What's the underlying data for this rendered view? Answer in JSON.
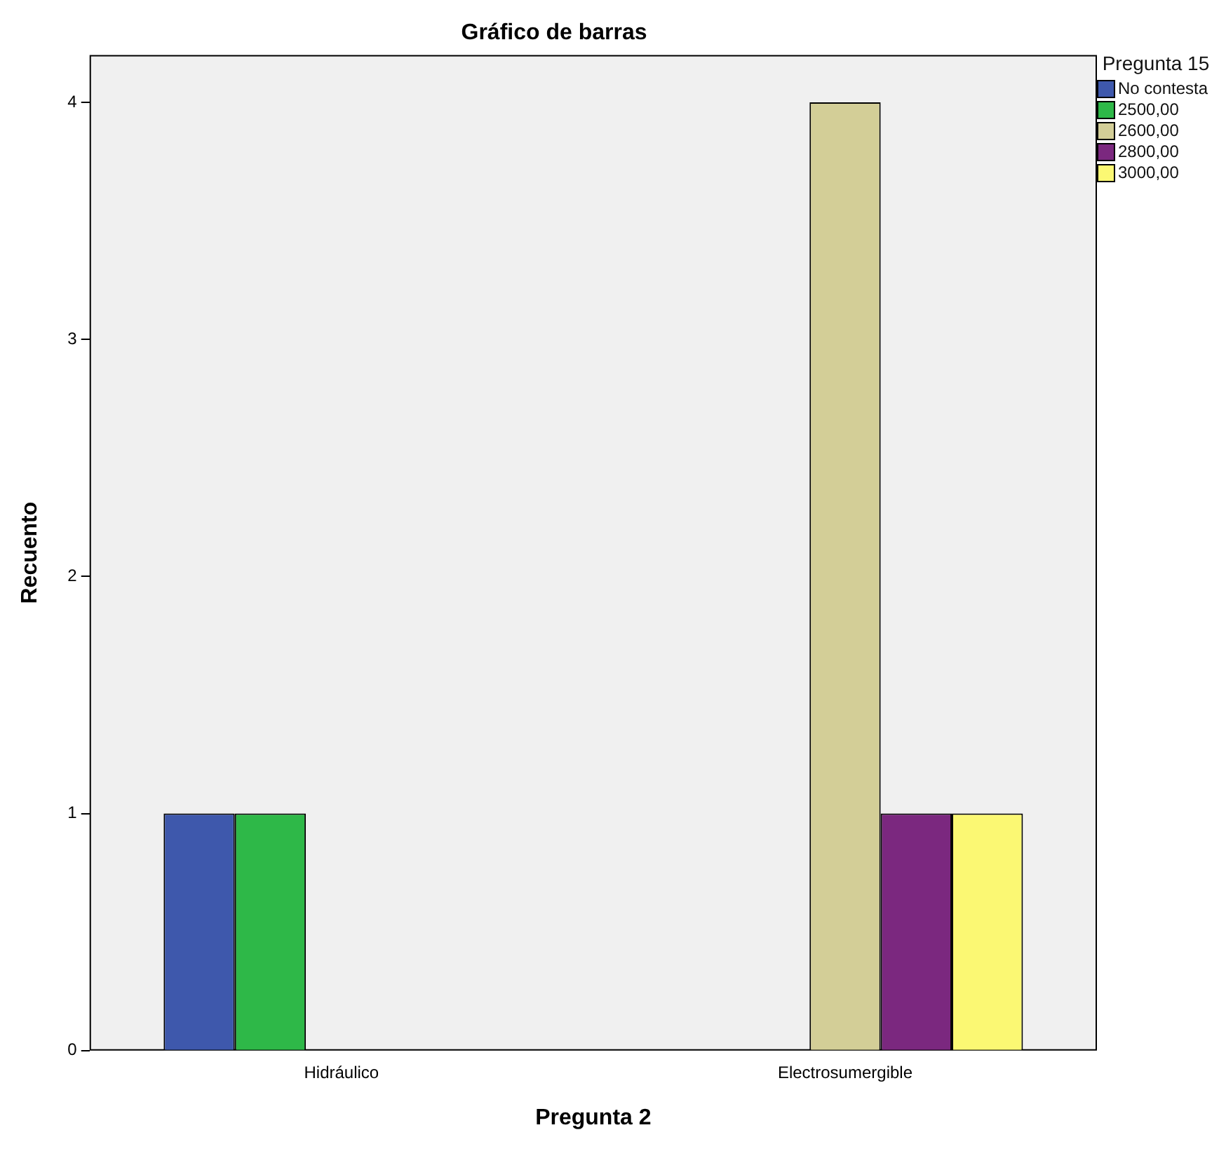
{
  "chart_data": {
    "type": "bar",
    "title": "Gráfico de barras",
    "xlabel": "Pregunta 2",
    "ylabel": "Recuento",
    "legend_title": "Pregunta 15",
    "legend": "right",
    "grid": false,
    "categories": [
      "Hidráulico",
      "Electrosumergible"
    ],
    "ylim": [
      0,
      4.2
    ],
    "yticks": [
      0,
      1,
      2,
      3,
      4
    ],
    "series": [
      {
        "name": "No contesta",
        "color": "#3e58ac",
        "values": [
          1,
          null
        ]
      },
      {
        "name": "2500,00",
        "color": "#2eb848",
        "values": [
          1,
          null
        ]
      },
      {
        "name": "2600,00",
        "color": "#d3ce97",
        "values": [
          null,
          4
        ]
      },
      {
        "name": "2800,00",
        "color": "#7b287f",
        "values": [
          null,
          1
        ]
      },
      {
        "name": "3000,00",
        "color": "#fbf873",
        "values": [
          null,
          1
        ]
      }
    ]
  }
}
